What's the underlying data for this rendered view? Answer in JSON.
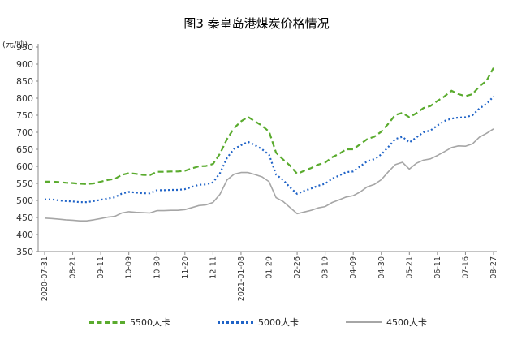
{
  "chart_data": {
    "type": "line",
    "title": "图3  秦皇岛港煤炭价格情况",
    "ylabel": "(元/吨)",
    "ylim": [
      350,
      950
    ],
    "yticks": [
      350,
      400,
      450,
      500,
      550,
      600,
      650,
      700,
      750,
      800,
      850,
      900,
      950
    ],
    "xtick_labels": [
      "2020-07-31",
      "08-21",
      "09-11",
      "10-09",
      "10-30",
      "11-20",
      "12-11",
      "2021-01-08",
      "01-29",
      "02-26",
      "03-19",
      "04-09",
      "04-30",
      "05-21",
      "06-11",
      "07-16",
      "08-27"
    ],
    "legend_position": "bottom",
    "grid": false,
    "series": [
      {
        "name": "5500大卡",
        "color": "#5aab2e",
        "style": "dashed",
        "values": [
          555,
          555,
          554,
          552,
          551,
          549,
          548,
          550,
          555,
          560,
          563,
          575,
          580,
          578,
          575,
          574,
          584,
          584,
          585,
          585,
          587,
          594,
          600,
          601,
          607,
          637,
          680,
          712,
          732,
          745,
          732,
          719,
          702,
          640,
          620,
          602,
          578,
          587,
          595,
          605,
          611,
          627,
          637,
          650,
          650,
          665,
          680,
          687,
          702,
          725,
          751,
          757,
          744,
          756,
          771,
          777,
          792,
          805,
          822,
          812,
          806,
          812,
          835,
          851,
          889
        ]
      },
      {
        "name": "5000大卡",
        "color": "#1f63c7",
        "style": "dotted",
        "values": [
          503,
          503,
          500,
          498,
          497,
          495,
          495,
          498,
          502,
          506,
          509,
          520,
          525,
          523,
          521,
          521,
          530,
          530,
          531,
          531,
          533,
          540,
          546,
          547,
          553,
          580,
          625,
          651,
          662,
          672,
          662,
          650,
          634,
          576,
          560,
          538,
          519,
          528,
          535,
          543,
          549,
          564,
          573,
          583,
          585,
          600,
          615,
          621,
          635,
          657,
          680,
          687,
          670,
          685,
          700,
          705,
          720,
          733,
          740,
          743,
          744,
          750,
          770,
          783,
          805
        ]
      },
      {
        "name": "4500大卡",
        "color": "#a6a6a6",
        "style": "solid",
        "values": [
          448,
          447,
          445,
          443,
          442,
          440,
          440,
          443,
          447,
          451,
          453,
          463,
          467,
          465,
          464,
          463,
          470,
          470,
          471,
          471,
          473,
          479,
          485,
          487,
          494,
          518,
          560,
          577,
          582,
          582,
          576,
          569,
          555,
          508,
          497,
          479,
          461,
          466,
          471,
          478,
          482,
          494,
          502,
          510,
          514,
          525,
          540,
          547,
          561,
          584,
          605,
          612,
          592,
          609,
          618,
          622,
          632,
          643,
          655,
          660,
          659,
          666,
          686,
          697,
          710
        ]
      }
    ]
  }
}
